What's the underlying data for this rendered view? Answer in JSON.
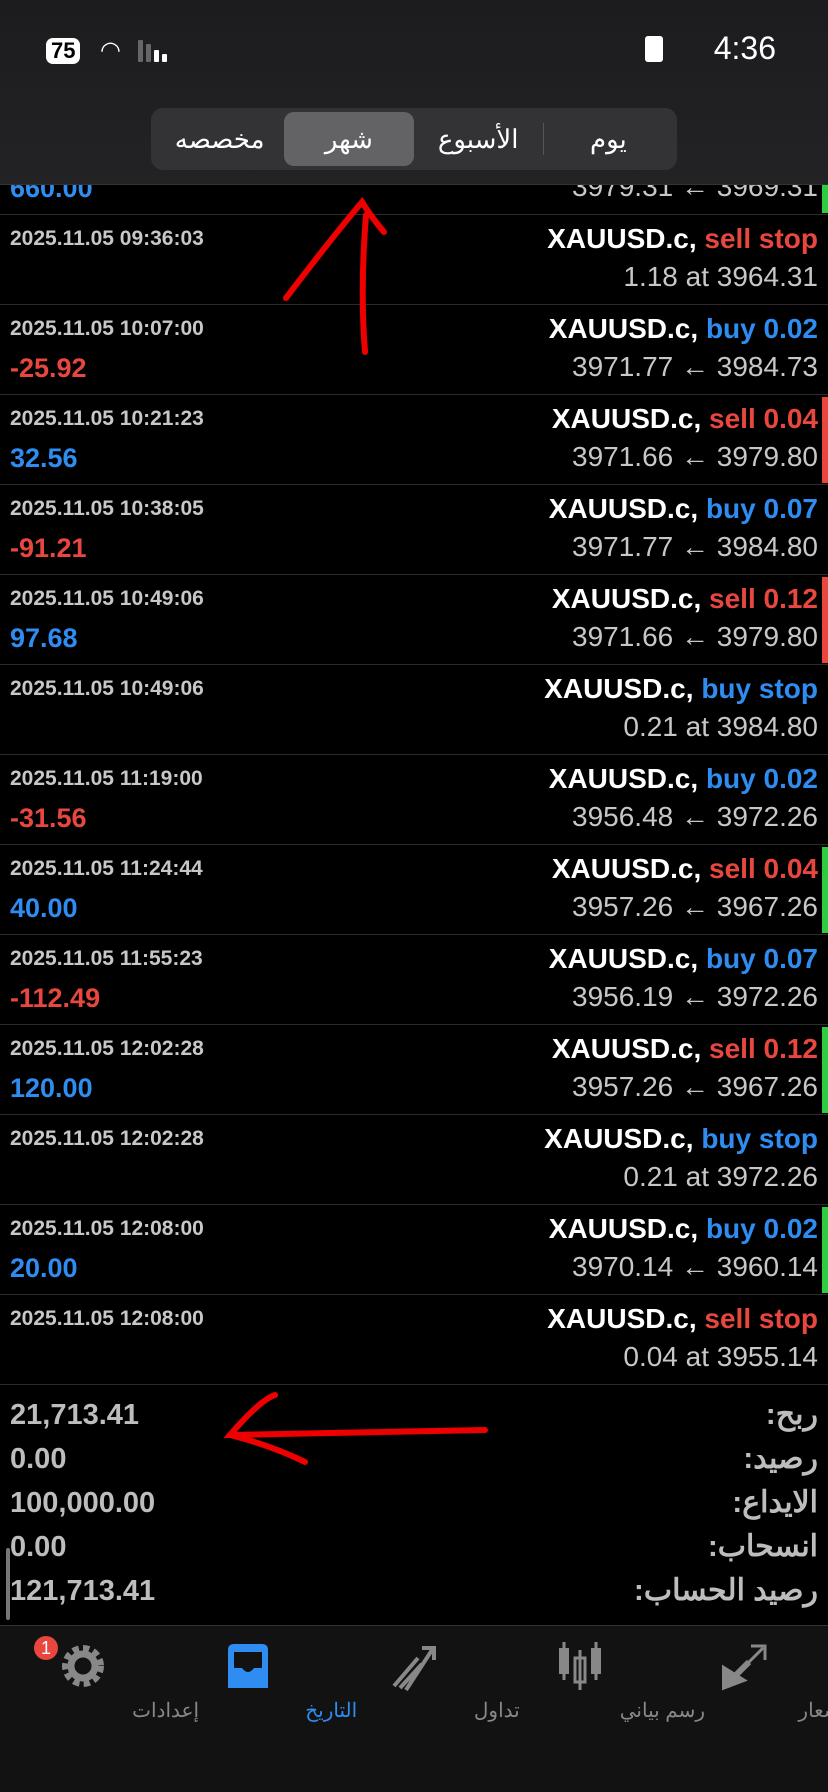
{
  "status_bar": {
    "battery": "75",
    "time": "4:36"
  },
  "segments": [
    {
      "label": "يوم"
    },
    {
      "label": "الأسبوع"
    },
    {
      "label": "شهر",
      "selected": true
    },
    {
      "label": "مخصصه"
    }
  ],
  "partial_row": {
    "profit": "660.00",
    "price": "3979.31 ← 3969.31",
    "indicator": "#2ecc40"
  },
  "rows": [
    {
      "date": "2025.11.05 09:36:03",
      "symbol": "XAUUSD.c,",
      "action": "sell stop",
      "side": "sell",
      "profit": "",
      "price": "1.18 at 3964.31",
      "indicator": ""
    },
    {
      "date": "2025.11.05 10:07:00",
      "symbol": "XAUUSD.c,",
      "action": "buy 0.02",
      "side": "buy",
      "profit": "-25.92",
      "price": "3971.77 ← 3984.73",
      "indicator": ""
    },
    {
      "date": "2025.11.05 10:21:23",
      "symbol": "XAUUSD.c,",
      "action": "sell 0.04",
      "side": "sell",
      "profit": "32.56",
      "price": "3971.66 ← 3979.80",
      "indicator": "#e8473f"
    },
    {
      "date": "2025.11.05 10:38:05",
      "symbol": "XAUUSD.c,",
      "action": "buy 0.07",
      "side": "buy",
      "profit": "-91.21",
      "price": "3971.77 ← 3984.80",
      "indicator": ""
    },
    {
      "date": "2025.11.05 10:49:06",
      "symbol": "XAUUSD.c,",
      "action": "sell 0.12",
      "side": "sell",
      "profit": "97.68",
      "price": "3971.66 ← 3979.80",
      "indicator": "#e8473f"
    },
    {
      "date": "2025.11.05 10:49:06",
      "symbol": "XAUUSD.c,",
      "action": "buy stop",
      "side": "buy",
      "profit": "",
      "price": "0.21 at 3984.80",
      "indicator": ""
    },
    {
      "date": "2025.11.05 11:19:00",
      "symbol": "XAUUSD.c,",
      "action": "buy 0.02",
      "side": "buy",
      "profit": "-31.56",
      "price": "3956.48 ← 3972.26",
      "indicator": ""
    },
    {
      "date": "2025.11.05 11:24:44",
      "symbol": "XAUUSD.c,",
      "action": "sell 0.04",
      "side": "sell",
      "profit": "40.00",
      "price": "3957.26 ← 3967.26",
      "indicator": "#2ecc40"
    },
    {
      "date": "2025.11.05 11:55:23",
      "symbol": "XAUUSD.c,",
      "action": "buy 0.07",
      "side": "buy",
      "profit": "-112.49",
      "price": "3956.19 ← 3972.26",
      "indicator": ""
    },
    {
      "date": "2025.11.05 12:02:28",
      "symbol": "XAUUSD.c,",
      "action": "sell 0.12",
      "side": "sell",
      "profit": "120.00",
      "price": "3957.26 ← 3967.26",
      "indicator": "#2ecc40"
    },
    {
      "date": "2025.11.05 12:02:28",
      "symbol": "XAUUSD.c,",
      "action": "buy stop",
      "side": "buy",
      "profit": "",
      "price": "0.21 at 3972.26",
      "indicator": ""
    },
    {
      "date": "2025.11.05 12:08:00",
      "symbol": "XAUUSD.c,",
      "action": "buy 0.02",
      "side": "buy",
      "profit": "20.00",
      "price": "3970.14 ← 3960.14",
      "indicator": "#2ecc40"
    },
    {
      "date": "2025.11.05 12:08:00",
      "symbol": "XAUUSD.c,",
      "action": "sell stop",
      "side": "sell",
      "profit": "",
      "price": "0.04 at 3955.14",
      "indicator": ""
    }
  ],
  "summary": [
    {
      "label": "ربح:",
      "value": "21,713.41"
    },
    {
      "label": "رصيد:",
      "value": "0.00"
    },
    {
      "label": "الايداع:",
      "value": "100,000.00"
    },
    {
      "label": "انسحاب:",
      "value": "0.00"
    },
    {
      "label": "رصيد الحساب:",
      "value": "121,713.41"
    }
  ],
  "tabs": [
    {
      "label": "إعدادات",
      "icon": "gear-icon",
      "badge": "1"
    },
    {
      "label": "التاريخ",
      "icon": "inbox-icon",
      "active": true
    },
    {
      "label": "تداول",
      "icon": "trade-arrow-icon"
    },
    {
      "label": "رسم بياني",
      "icon": "candlestick-icon"
    },
    {
      "label": "الاسعار",
      "icon": "quotes-arrows-icon"
    }
  ],
  "colors": {
    "buy": "#2f8cf0",
    "sell": "#e8473f",
    "accent": "#2f8cf0",
    "annotation": "#ff0000"
  }
}
